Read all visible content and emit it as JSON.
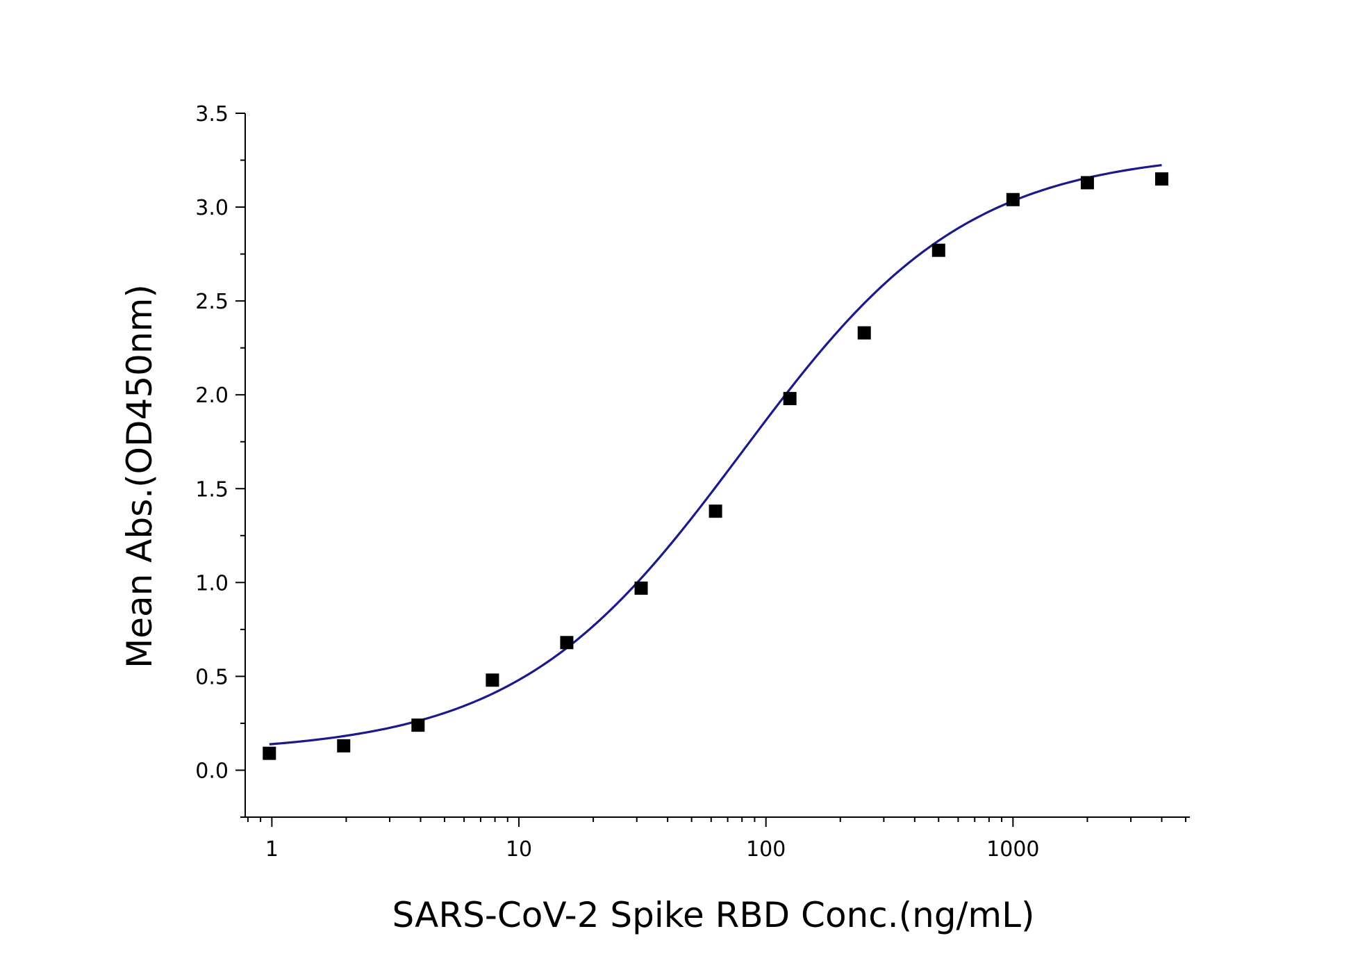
{
  "chart_data": {
    "type": "scatter",
    "title": "",
    "xlabel": "SARS-CoV-2 Spike RBD Conc.(ng/mL)",
    "ylabel": "Mean Abs.(OD450nm)",
    "xscale": "log",
    "xlim": [
      0.78,
      5200
    ],
    "ylim": [
      -0.25,
      3.5
    ],
    "xticks": [
      1,
      10,
      100,
      1000
    ],
    "xtick_labels": [
      "1",
      "10",
      "100",
      "1000"
    ],
    "yticks": [
      0.0,
      0.5,
      1.0,
      1.5,
      2.0,
      2.5,
      3.0,
      3.5
    ],
    "ytick_labels": [
      "0.0",
      "0.5",
      "1.0",
      "1.5",
      "2.0",
      "2.5",
      "3.0",
      "3.5"
    ],
    "grid": false,
    "legend": "none",
    "series": [
      {
        "type": "scatter",
        "marker": "square",
        "color": "#000000",
        "x": [
          0.977,
          1.953,
          3.906,
          7.8125,
          15.625,
          31.25,
          62.5,
          125,
          250,
          500,
          1000,
          2000,
          4000
        ],
        "y": [
          0.09,
          0.13,
          0.24,
          0.48,
          0.68,
          0.97,
          1.38,
          1.98,
          2.33,
          2.77,
          3.04,
          3.13,
          3.15
        ]
      },
      {
        "type": "line",
        "fit": "4PL",
        "color": "#1a1a8c",
        "params": {
          "bottom": 0.09,
          "top": 3.3,
          "ec50": 80,
          "hill": 0.95
        },
        "x_range": [
          0.977,
          4000
        ]
      }
    ]
  }
}
